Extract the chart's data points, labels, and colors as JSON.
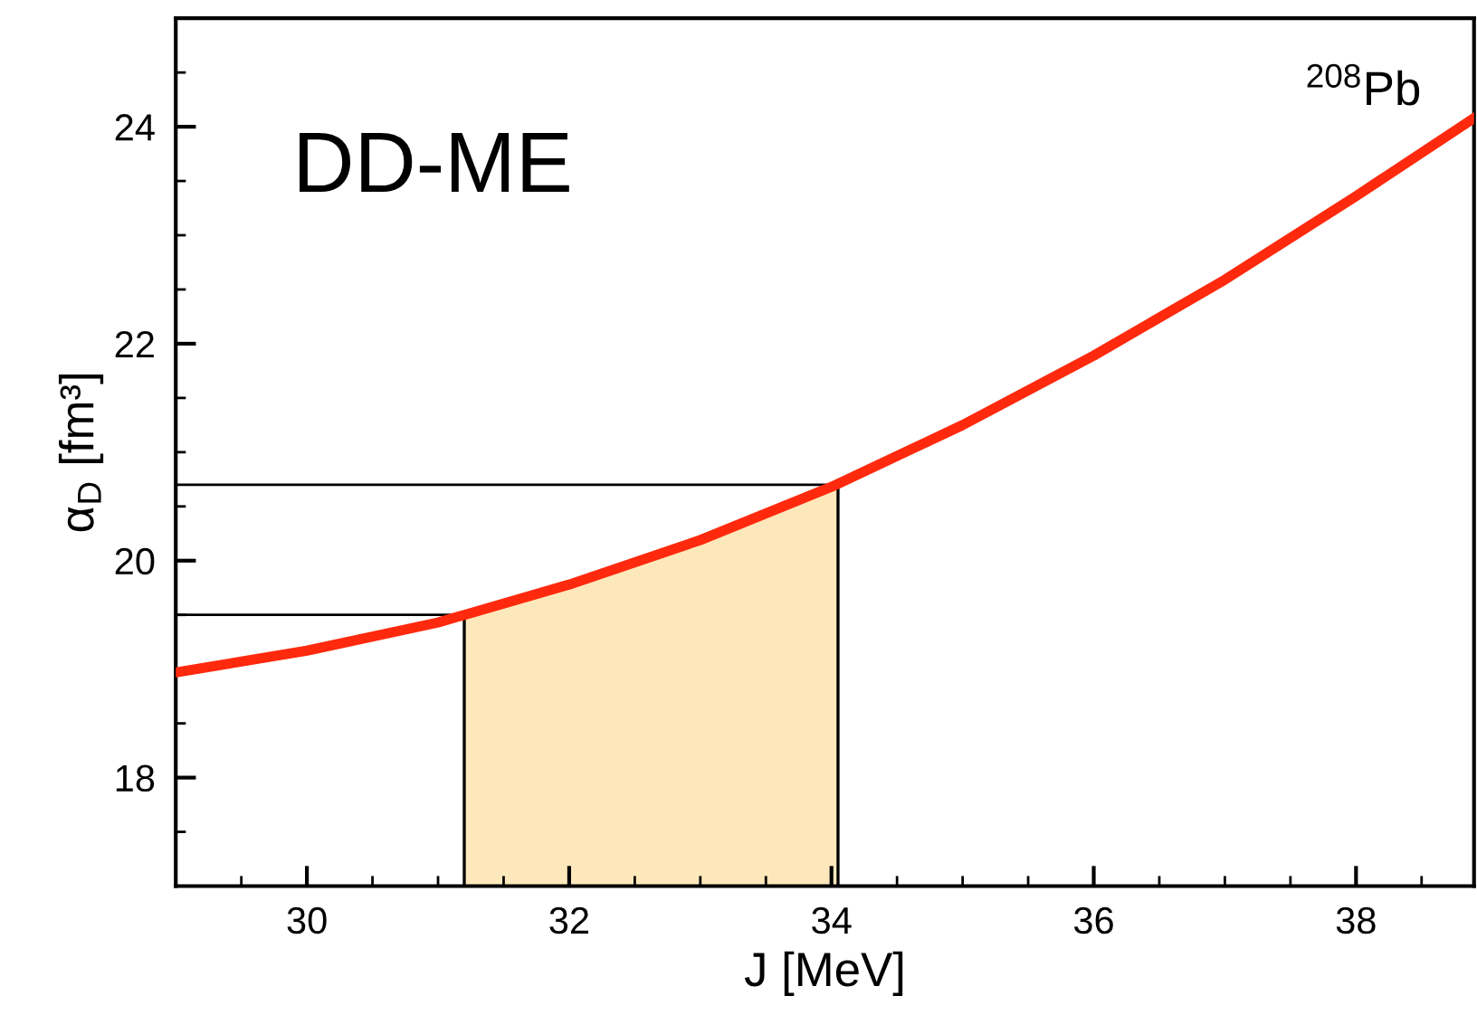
{
  "chart_data": {
    "type": "line",
    "xlabel": "J [MeV]",
    "ylabel": "α$_{D}$ [fm³]",
    "annotations": [
      "DD-ME",
      "$^{208}$Pb"
    ],
    "x": [
      29,
      30,
      31,
      32,
      33,
      34,
      35,
      36,
      37,
      38,
      38.9
    ],
    "series": [
      {
        "color": "#ff2a0e",
        "values": [
          18.97,
          19.17,
          19.43,
          19.78,
          20.19,
          20.68,
          21.25,
          21.89,
          22.59,
          23.36,
          24.08
        ]
      },
      {
        "type": "area",
        "color": "#fde8bb",
        "x": [
          31.2,
          32,
          33,
          34.05
        ],
        "values": [
          19.5,
          19.78,
          20.19,
          20.7
        ]
      }
    ],
    "xlim": [
      29,
      38.9
    ],
    "ylim": [
      17,
      25
    ],
    "xticks": [
      {
        "value": 29.5,
        "label": null
      },
      30,
      {
        "value": 30.5,
        "label": null
      },
      {
        "value": 31,
        "label": null
      },
      {
        "value": 31.5,
        "label": null
      },
      32,
      {
        "value": 32.5,
        "label": null
      },
      {
        "value": 33,
        "label": null
      },
      {
        "value": 33.5,
        "label": null
      },
      34,
      {
        "value": 34.5,
        "label": null
      },
      {
        "value": 35,
        "label": null
      },
      {
        "value": 35.5,
        "label": null
      },
      36,
      {
        "value": 36.5,
        "label": null
      },
      {
        "value": 37,
        "label": null
      },
      {
        "value": 37.5,
        "label": null
      },
      38,
      {
        "value": 38.5,
        "label": null
      }
    ],
    "yticks": [
      {
        "value": 17.5,
        "label": null
      },
      18,
      {
        "value": 18.5,
        "label": null
      },
      {
        "value": 19,
        "label": null
      },
      {
        "value": 19.5,
        "label": null
      },
      20,
      {
        "value": 20.5,
        "label": null
      },
      {
        "value": 21,
        "label": null
      },
      {
        "value": 21.5,
        "label": null
      },
      22,
      {
        "value": 22.5,
        "label": null
      },
      {
        "value": 23,
        "label": null
      },
      {
        "value": 23.5,
        "label": null
      },
      24,
      {
        "value": 24.5,
        "label": null
      }
    ],
    "ref_lines": [
      {
        "axis": "y",
        "value": 19.5,
        "color": "#000000"
      },
      {
        "axis": "y",
        "value": 20.7,
        "color": "#000000"
      },
      {
        "axis": "x",
        "value": 31.2,
        "color": "#000000"
      },
      {
        "axis": "x",
        "value": 34.05,
        "color": "#000000"
      }
    ],
    "grid": false,
    "legend": false
  }
}
